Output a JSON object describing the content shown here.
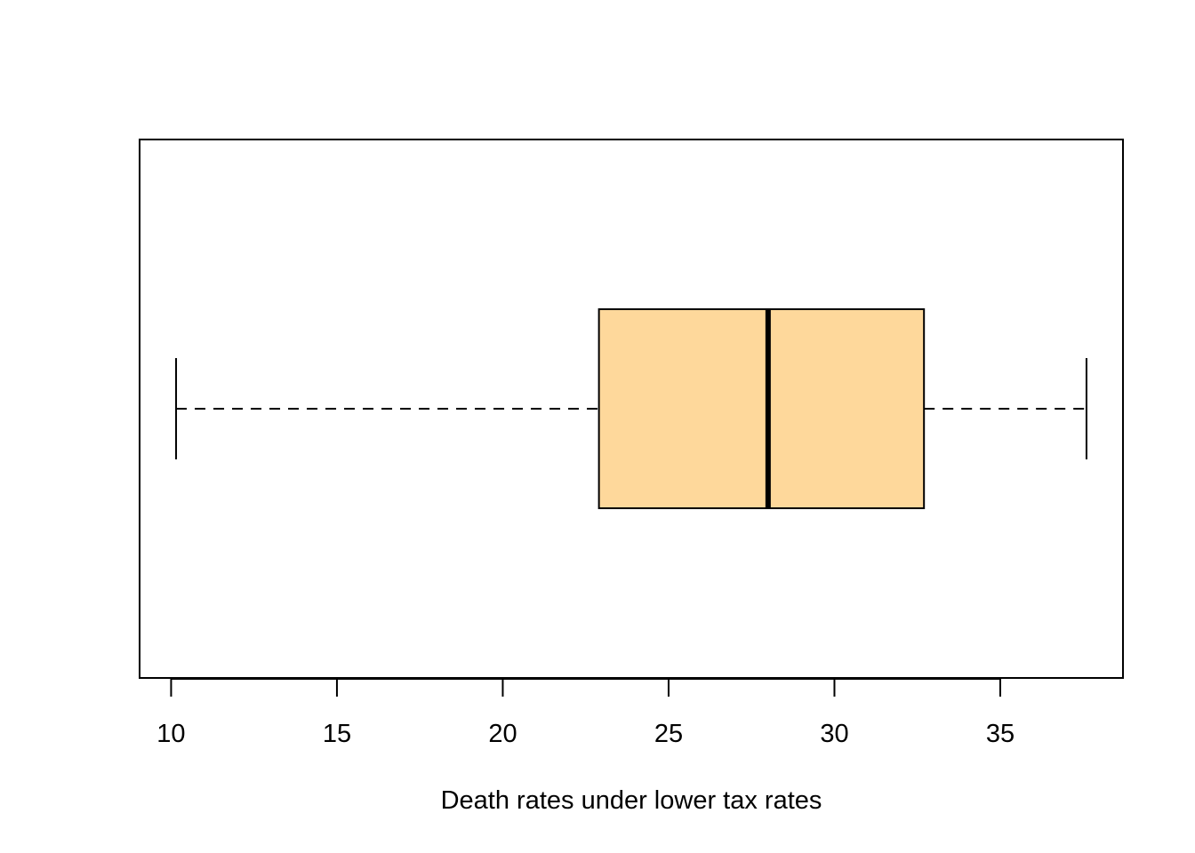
{
  "chart_data": {
    "type": "boxplot",
    "orientation": "horizontal",
    "title": "",
    "xlabel": "Death rates under lower tax rates",
    "ylabel": "",
    "xlim": [
      9.05,
      38.7
    ],
    "ticks": [
      10,
      15,
      20,
      25,
      30,
      35
    ],
    "tick_labels": [
      "10",
      "15",
      "20",
      "25",
      "30",
      "35"
    ],
    "box": {
      "min": 10.15,
      "q1": 22.9,
      "median": 28.0,
      "q3": 32.7,
      "max": 37.6
    },
    "fill_color": "#fed89b",
    "line_color": "#000000",
    "grid": false,
    "legend": "none"
  }
}
